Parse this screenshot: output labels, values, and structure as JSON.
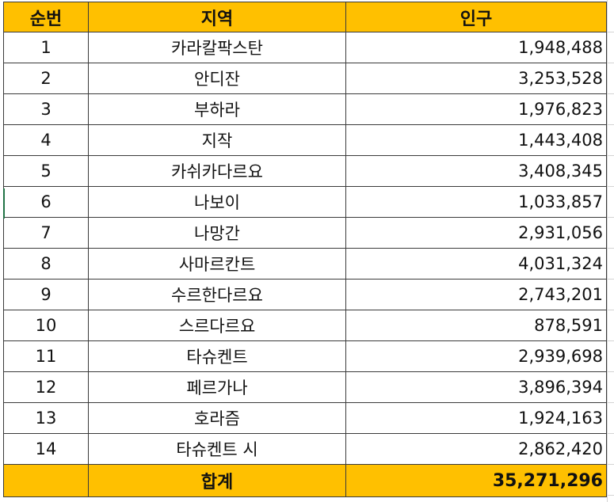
{
  "headers": {
    "no": "순번",
    "region": "지역",
    "population": "인구"
  },
  "rows": [
    {
      "no": "1",
      "region": "카라칼팍스탄",
      "population": "1,948,488"
    },
    {
      "no": "2",
      "region": "안디잔",
      "population": "3,253,528"
    },
    {
      "no": "3",
      "region": "부하라",
      "population": "1,976,823"
    },
    {
      "no": "4",
      "region": "지작",
      "population": "1,443,408"
    },
    {
      "no": "5",
      "region": "카쉬카다르요",
      "population": "3,408,345"
    },
    {
      "no": "6",
      "region": "나보이",
      "population": "1,033,857"
    },
    {
      "no": "7",
      "region": "나망간",
      "population": "2,931,056"
    },
    {
      "no": "8",
      "region": "사마르칸트",
      "population": "4,031,324"
    },
    {
      "no": "9",
      "region": "수르한다르요",
      "population": "2,743,201"
    },
    {
      "no": "10",
      "region": "스르다르요",
      "population": "878,591"
    },
    {
      "no": "11",
      "region": "타슈켄트",
      "population": "2,939,698"
    },
    {
      "no": "12",
      "region": "페르가나",
      "population": "3,896,394"
    },
    {
      "no": "13",
      "region": "호라즘",
      "population": "1,924,163"
    },
    {
      "no": "14",
      "region": "타슈켄트 시",
      "population": "2,862,420"
    }
  ],
  "total": {
    "label": "합계",
    "value": "35,271,296"
  },
  "colors": {
    "header_fill": "#ffc000",
    "border": "#3a3a3a"
  }
}
